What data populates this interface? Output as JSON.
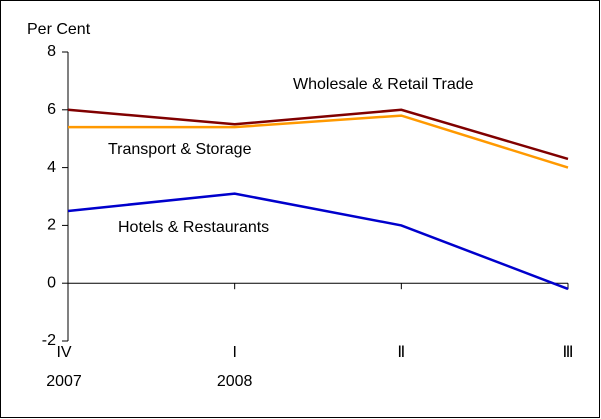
{
  "chart_data": {
    "type": "line",
    "y_label": "Per Cent",
    "categories": [
      [
        "IV",
        "2007"
      ],
      [
        "I",
        "2008"
      ],
      [
        "Ⅱ"
      ],
      [
        "Ⅲ"
      ]
    ],
    "series": [
      {
        "name": "Wholesale & Retail Trade",
        "color": "#800000",
        "values": [
          6.0,
          5.5,
          6.0,
          4.3
        ]
      },
      {
        "name": "Transport & Storage",
        "color": "#FF9900",
        "values": [
          5.4,
          5.4,
          5.8,
          4.0
        ]
      },
      {
        "name": "Hotels & Restaurants",
        "color": "#0000CC",
        "values": [
          2.5,
          3.1,
          2.0,
          -0.2
        ]
      }
    ],
    "ylim": [
      -2,
      8
    ],
    "yticks": [
      -2,
      0,
      2,
      4,
      6,
      8
    ],
    "grid": false
  }
}
